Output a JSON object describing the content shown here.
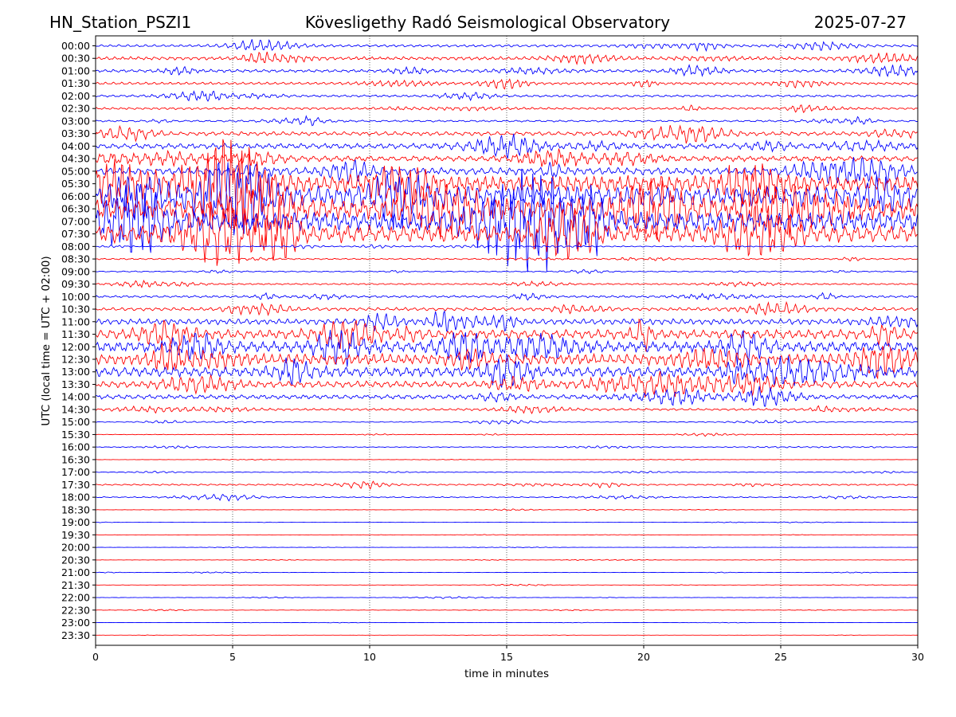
{
  "header": {
    "station": "HN_Station_PSZI1",
    "observatory": "Kövesligethy Radó Seismological Observatory",
    "date": "2025-07-27"
  },
  "chart_data": {
    "type": "line",
    "title": "Kövesligethy Radó Seismological Observatory",
    "xlabel": "time in minutes",
    "ylabel": "UTC (local time = UTC + 02:00)",
    "xlim": [
      0,
      30
    ],
    "x_ticks": [
      "0",
      "5",
      "10",
      "15",
      "20",
      "25",
      "30"
    ],
    "grid": "vertical dotted lines at 5-minute intervals",
    "trace_colors": [
      "#0000ff",
      "#ff0000"
    ],
    "rows": [
      "00:00",
      "00:30",
      "01:00",
      "01:30",
      "02:00",
      "02:30",
      "03:00",
      "03:30",
      "04:00",
      "04:30",
      "05:00",
      "05:30",
      "06:00",
      "06:30",
      "07:00",
      "07:30",
      "08:00",
      "08:30",
      "09:00",
      "09:30",
      "10:00",
      "10:30",
      "11:00",
      "11:30",
      "12:00",
      "12:30",
      "13:00",
      "13:30",
      "14:00",
      "14:30",
      "15:00",
      "15:30",
      "16:00",
      "16:30",
      "17:00",
      "17:30",
      "18:00",
      "18:30",
      "19:00",
      "19:30",
      "20:00",
      "20:30",
      "21:00",
      "21:30",
      "22:00",
      "22:30",
      "23:00",
      "23:30"
    ],
    "relative_amplitude": [
      0.35,
      0.45,
      0.4,
      0.35,
      0.3,
      0.3,
      0.25,
      0.55,
      0.75,
      0.75,
      1.0,
      2.2,
      2.8,
      2.9,
      2.7,
      2.4,
      0.15,
      0.2,
      0.15,
      0.2,
      0.3,
      0.45,
      0.8,
      1.3,
      1.5,
      1.5,
      1.4,
      0.9,
      0.6,
      0.3,
      0.12,
      0.08,
      0.1,
      0.05,
      0.1,
      0.2,
      0.15,
      0.04,
      0.03,
      0.03,
      0.03,
      0.04,
      0.04,
      0.04,
      0.05,
      0.05,
      0.02,
      0.02
    ]
  }
}
